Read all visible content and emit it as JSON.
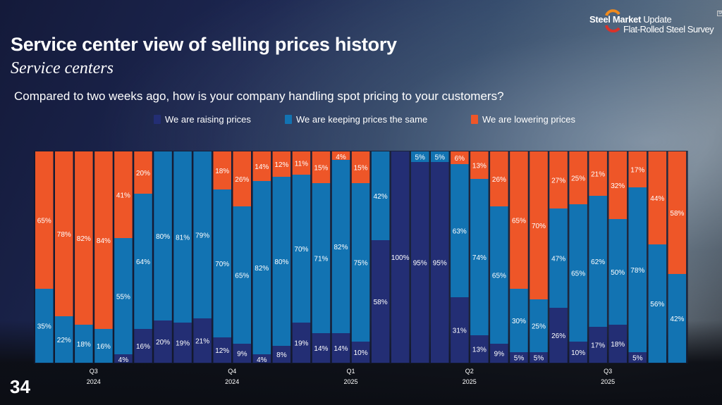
{
  "header": {
    "title": "Service center view of selling prices history",
    "subtitle": "Service centers",
    "question": "Compared to two weeks ago, how is your company handling spot pricing to your customers?"
  },
  "logo": {
    "brand_bold": "Steel Market",
    "brand_light": "Update",
    "line2": "Flat-Rolled Steel Survey",
    "mark": "SM"
  },
  "page_number": "34",
  "colors": {
    "raising": "#232e74",
    "same": "#1273b2",
    "lowering": "#ee5628"
  },
  "chart_data": {
    "type": "bar",
    "stacked": true,
    "normalized": true,
    "title": "Compared to two weeks ago, how is your company handling spot pricing to your customers?",
    "xlabel": "",
    "ylabel": "",
    "ylim": [
      0,
      100
    ],
    "legend_position": "top",
    "grid": false,
    "quarter_ticks": [
      {
        "bar_index": 2,
        "quarter": "Q3",
        "year": "2024"
      },
      {
        "bar_index": 9,
        "quarter": "Q4",
        "year": "2024"
      },
      {
        "bar_index": 15,
        "quarter": "Q1",
        "year": "2025"
      },
      {
        "bar_index": 21,
        "quarter": "Q2",
        "year": "2025"
      },
      {
        "bar_index": 28,
        "quarter": "Q3",
        "year": "2025"
      }
    ],
    "series": [
      {
        "name": "We are raising prices",
        "key": "raising",
        "values": [
          0,
          0,
          0,
          0,
          4,
          16,
          20,
          19,
          21,
          12,
          9,
          4,
          8,
          19,
          14,
          14,
          10,
          58,
          100,
          95,
          95,
          31,
          13,
          9,
          5,
          5,
          26,
          10,
          17,
          18,
          5,
          0,
          0
        ]
      },
      {
        "name": "We are keeping prices the same",
        "key": "same",
        "values": [
          35,
          22,
          18,
          16,
          55,
          64,
          80,
          81,
          79,
          70,
          65,
          82,
          80,
          70,
          71,
          82,
          75,
          42,
          0,
          5,
          5,
          63,
          74,
          65,
          30,
          25,
          47,
          65,
          62,
          50,
          78,
          56,
          42
        ]
      },
      {
        "name": "We are lowering prices",
        "key": "lowering",
        "values": [
          65,
          78,
          82,
          84,
          41,
          20,
          0,
          0,
          0,
          18,
          26,
          14,
          12,
          11,
          15,
          4,
          15,
          0,
          0,
          0,
          0,
          6,
          13,
          26,
          65,
          70,
          27,
          25,
          21,
          32,
          17,
          44,
          58
        ]
      }
    ]
  }
}
